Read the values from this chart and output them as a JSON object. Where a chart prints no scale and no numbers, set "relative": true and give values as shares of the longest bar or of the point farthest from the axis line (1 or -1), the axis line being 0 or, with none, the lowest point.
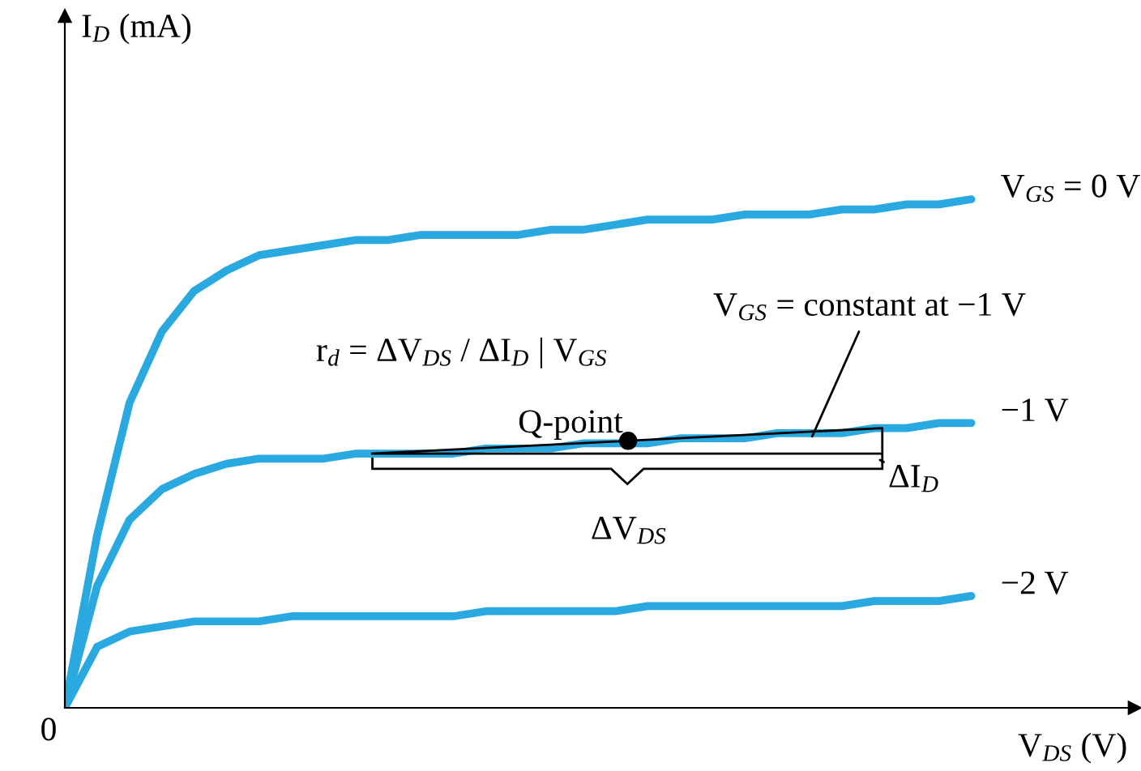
{
  "chart_data": {
    "type": "line",
    "relative": true,
    "xlabel": "V$_{DS}$ (V)",
    "ylabel": "I$_{D}$ (mA)",
    "categories": [
      null,
      null,
      null,
      null,
      null,
      null,
      null,
      null,
      null,
      null,
      null,
      null,
      null,
      null,
      null,
      null,
      null,
      null,
      null,
      null,
      null,
      null,
      null,
      null,
      null,
      null,
      null,
      null,
      null
    ],
    "series": [
      {
        "name": "V$_{GS}$ = 0 V",
        "color": "#29a9e0",
        "values": [
          0,
          0.34,
          0.6,
          0.74,
          0.82,
          0.86,
          0.89,
          0.9,
          0.91,
          0.92,
          0.92,
          0.93,
          0.93,
          0.93,
          0.93,
          0.94,
          0.94,
          0.95,
          0.96,
          0.96,
          0.96,
          0.97,
          0.97,
          0.97,
          0.98,
          0.98,
          0.99,
          0.99,
          1
        ]
      },
      {
        "name": "−1 V",
        "color": "#29a9e0",
        "values": [
          0,
          0.24,
          0.37,
          0.43,
          0.46,
          0.48,
          0.49,
          0.49,
          0.49,
          0.5,
          0.5,
          0.5,
          0.5,
          0.51,
          0.51,
          0.51,
          0.52,
          0.52,
          0.52,
          0.53,
          0.53,
          0.53,
          0.54,
          0.54,
          0.54,
          0.55,
          0.55,
          0.56,
          0.56
        ]
      },
      {
        "name": "−2 V",
        "color": "#29a9e0",
        "values": [
          0,
          0.12,
          0.15,
          0.16,
          0.17,
          0.17,
          0.17,
          0.18,
          0.18,
          0.18,
          0.18,
          0.18,
          0.18,
          0.19,
          0.19,
          0.19,
          0.19,
          0.19,
          0.2,
          0.2,
          0.2,
          0.2,
          0.2,
          0.2,
          0.2,
          0.21,
          0.21,
          0.21,
          0.22
        ]
      }
    ],
    "annotations": [
      "0",
      "r$_{d}$ = ΔV$_{DS}$ / ΔI$_{D}$ | V$_{GS}$",
      "V$_{GS}$ = constant at −1 V",
      "Q-point",
      "ΔI$_{D}$",
      "ΔV$_{DS}$"
    ]
  }
}
